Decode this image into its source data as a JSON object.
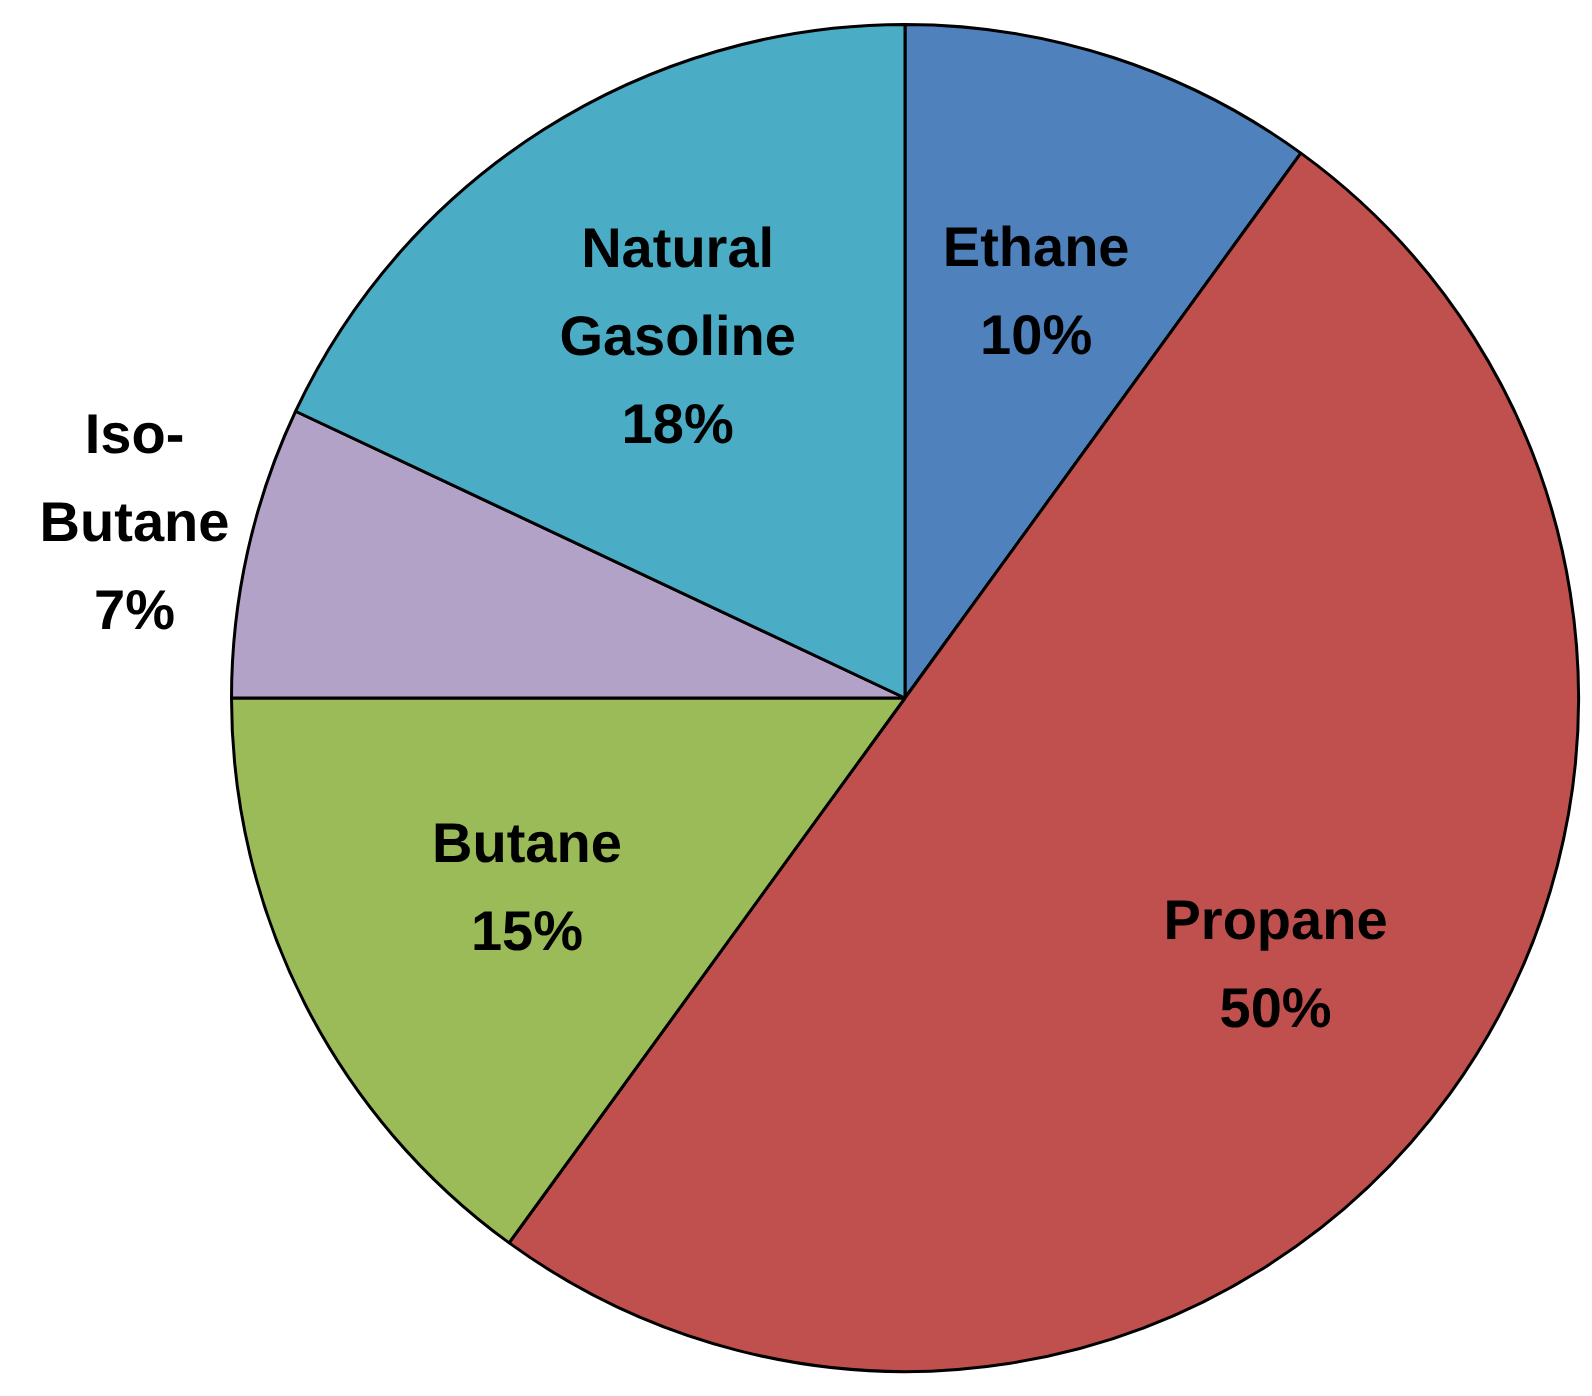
{
  "chart_data": {
    "type": "pie",
    "categories": [
      "Ethane",
      "Propane",
      "Butane",
      "Iso-Butane",
      "Natural Gasoline"
    ],
    "values": [
      10,
      50,
      15,
      7,
      18
    ],
    "colors": [
      "#4f81bd",
      "#c0504d",
      "#9bbb59",
      "#b2a2c7",
      "#4bacc6"
    ],
    "value_labels": [
      "10%",
      "50%",
      "15%",
      "7%",
      "18%"
    ]
  }
}
